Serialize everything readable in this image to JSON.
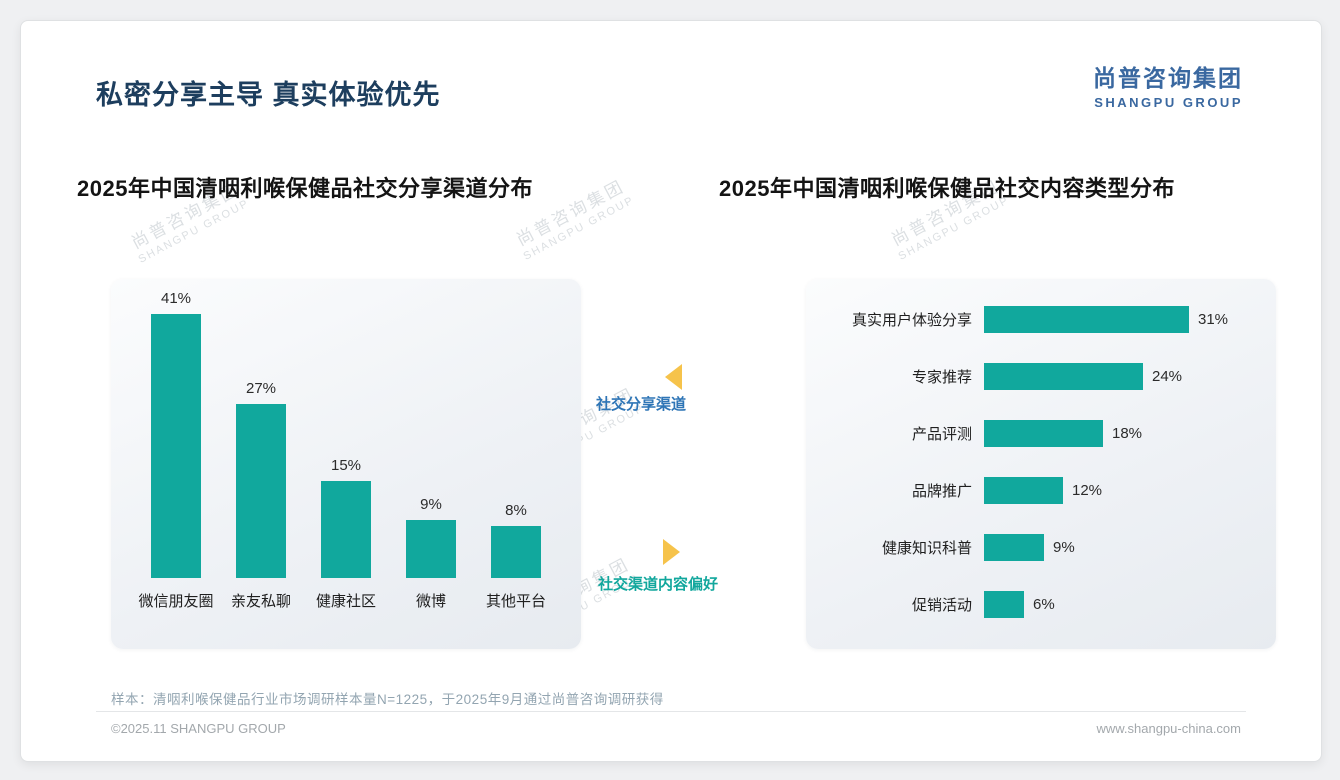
{
  "slide": {
    "title": "私密分享主导 真实体验优先"
  },
  "brand": {
    "cn": "尚普咨询集团",
    "en": "SHANGPU GROUP"
  },
  "watermark": {
    "cn": "尚普咨询集团",
    "en": "SHANGPU GROUP"
  },
  "annotations": {
    "left_label": "社交分享渠道",
    "right_label": "社交渠道内容偏好"
  },
  "sample_note": "样本：清咽利喉保健品行业市场调研样本量N=1225，于2025年9月通过尚普咨询调研获得",
  "footer": {
    "left": "©2025.11 SHANGPU GROUP",
    "right": "www.shangpu-china.com"
  },
  "colors": {
    "bar_teal": "#11a89d",
    "title_navy": "#1d3e5e",
    "brand_blue": "#3a68a0",
    "arrow_yellow": "#f6c34b",
    "callout_blue": "#2e75b6",
    "callout_teal": "#12a79d",
    "note_gray": "#93a5b1",
    "footer_gray": "#a3a8ac"
  },
  "chart_data": [
    {
      "type": "bar",
      "orientation": "vertical",
      "title": "2025年中国清咽利喉保健品社交分享渠道分布",
      "categories": [
        "微信朋友圈",
        "亲友私聊",
        "健康社区",
        "微博",
        "其他平台"
      ],
      "values": [
        41,
        27,
        15,
        9,
        8
      ],
      "unit": "%",
      "value_labels": true,
      "axes_visible": false,
      "grid": false,
      "bar_color": "#11a89d",
      "ylim": [
        0,
        45
      ]
    },
    {
      "type": "bar",
      "orientation": "horizontal",
      "title": "2025年中国清咽利喉保健品社交内容类型分布",
      "categories": [
        "真实用户体验分享",
        "专家推荐",
        "产品评测",
        "品牌推广",
        "健康知识科普",
        "促销活动"
      ],
      "values": [
        31,
        24,
        18,
        12,
        9,
        6
      ],
      "unit": "%",
      "value_labels": true,
      "axes_visible": false,
      "grid": false,
      "bar_color": "#11a89d",
      "xlim": [
        0,
        35
      ]
    }
  ]
}
